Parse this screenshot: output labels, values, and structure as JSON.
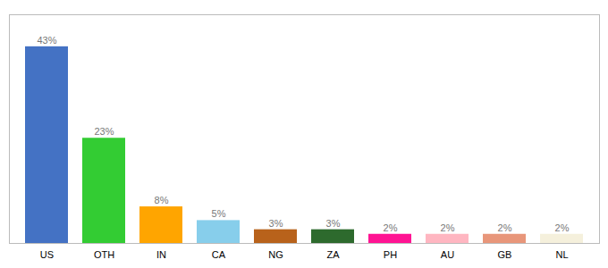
{
  "chart_data": {
    "type": "bar",
    "categories": [
      "US",
      "OTH",
      "IN",
      "CA",
      "NG",
      "ZA",
      "PH",
      "AU",
      "GB",
      "NL"
    ],
    "values": [
      43,
      23,
      8,
      5,
      3,
      3,
      2,
      2,
      2,
      2
    ],
    "value_labels": [
      "43%",
      "23%",
      "8%",
      "5%",
      "3%",
      "3%",
      "2%",
      "2%",
      "2%",
      "2%"
    ],
    "colors": [
      "#4472C4",
      "#33CC33",
      "#FFA500",
      "#87CEEB",
      "#B8621B",
      "#2D6A2D",
      "#FF1493",
      "#FFB6C1",
      "#E8967A",
      "#F5F0DC"
    ],
    "ylim": [
      0,
      50
    ],
    "data_labels": true,
    "tick_labels": "x"
  }
}
